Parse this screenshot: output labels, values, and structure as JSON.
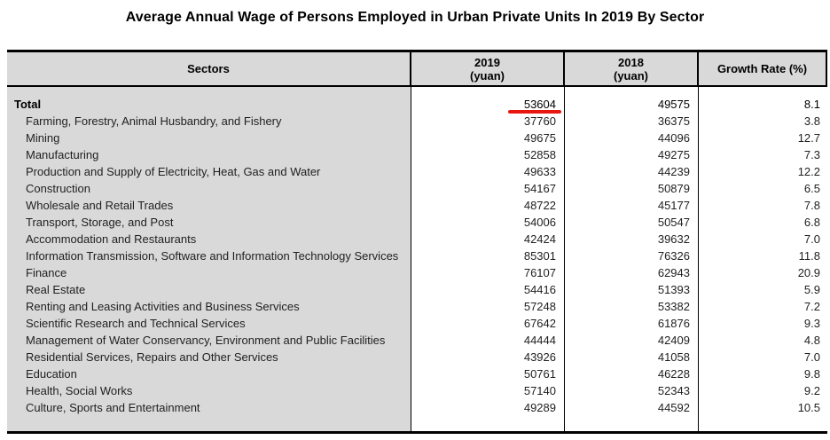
{
  "title": "Average Annual Wage of Persons Employed in Urban Private Units In 2019 By Sector",
  "colors": {
    "header_bg": "#d9d9d9",
    "sector_column_bg": "#d9d9d9",
    "table_border": "#000000",
    "highlight_red": "#e8160f"
  },
  "table_headers": {
    "sectors": "Sectors",
    "y2019_line1": "2019",
    "y2019_line2": "(yuan)",
    "y2018_line1": "2018",
    "y2018_line2": "(yuan)",
    "growth": "Growth Rate (%)"
  },
  "annotation": {
    "shape": "red-underline-marker",
    "row": "Total",
    "column": "2019 (yuan)",
    "under_value": 53604,
    "color": "#e8160f",
    "value_also_black_underlined": true
  },
  "chart_data": {
    "type": "table",
    "title": "Average Annual Wage of Persons Employed in Urban Private Units In 2019 By Sector",
    "columns": [
      "Sectors",
      "2019 (yuan)",
      "2018 (yuan)",
      "Growth Rate (%)"
    ],
    "rows": [
      {
        "sector": "Total",
        "wage_2019": 53604,
        "wage_2018": 49575,
        "growth_rate": 8.1,
        "total_row": true,
        "annotated_2019": true
      },
      {
        "sector": "Farming, Forestry, Animal Husbandry, and Fishery",
        "wage_2019": 37760,
        "wage_2018": 36375,
        "growth_rate": 3.8
      },
      {
        "sector": "Mining",
        "wage_2019": 49675,
        "wage_2018": 44096,
        "growth_rate": 12.7
      },
      {
        "sector": "Manufacturing",
        "wage_2019": 52858,
        "wage_2018": 49275,
        "growth_rate": 7.3
      },
      {
        "sector": "Production and Supply of Electricity, Heat, Gas and Water",
        "wage_2019": 49633,
        "wage_2018": 44239,
        "growth_rate": 12.2
      },
      {
        "sector": "Construction",
        "wage_2019": 54167,
        "wage_2018": 50879,
        "growth_rate": 6.5
      },
      {
        "sector": "Wholesale and Retail Trades",
        "wage_2019": 48722,
        "wage_2018": 45177,
        "growth_rate": 7.8
      },
      {
        "sector": "Transport, Storage, and Post",
        "wage_2019": 54006,
        "wage_2018": 50547,
        "growth_rate": 6.8
      },
      {
        "sector": "Accommodation and Restaurants",
        "wage_2019": 42424,
        "wage_2018": 39632,
        "growth_rate": 7.0
      },
      {
        "sector": "Information Transmission, Software and Information Technology Services",
        "wage_2019": 85301,
        "wage_2018": 76326,
        "growth_rate": 11.8
      },
      {
        "sector": "Finance",
        "wage_2019": 76107,
        "wage_2018": 62943,
        "growth_rate": 20.9
      },
      {
        "sector": "Real Estate",
        "wage_2019": 54416,
        "wage_2018": 51393,
        "growth_rate": 5.9
      },
      {
        "sector": "Renting and Leasing Activities and Business Services",
        "wage_2019": 57248,
        "wage_2018": 53382,
        "growth_rate": 7.2
      },
      {
        "sector": "Scientific Research and Technical Services",
        "wage_2019": 67642,
        "wage_2018": 61876,
        "growth_rate": 9.3
      },
      {
        "sector": "Management of Water Conservancy, Environment and Public Facilities",
        "wage_2019": 44444,
        "wage_2018": 42409,
        "growth_rate": 4.8
      },
      {
        "sector": "Residential Services, Repairs and Other Services",
        "wage_2019": 43926,
        "wage_2018": 41058,
        "growth_rate": 7.0
      },
      {
        "sector": "Education",
        "wage_2019": 50761,
        "wage_2018": 46228,
        "growth_rate": 9.8
      },
      {
        "sector": "Health, Social Works",
        "wage_2019": 57140,
        "wage_2018": 52343,
        "growth_rate": 9.2
      },
      {
        "sector": "Culture, Sports and Entertainment",
        "wage_2019": 49289,
        "wage_2018": 44592,
        "growth_rate": 10.5
      }
    ]
  }
}
